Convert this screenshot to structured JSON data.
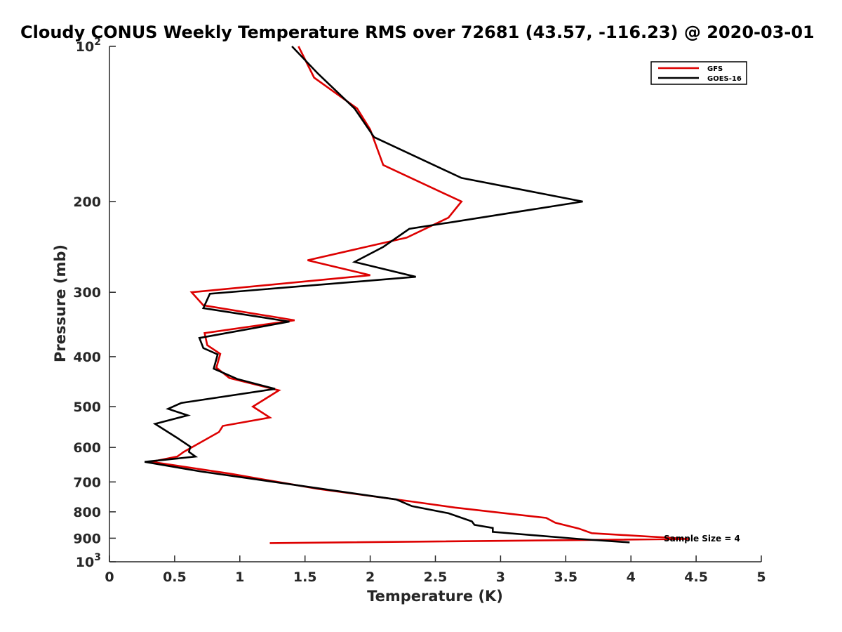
{
  "chart_data": {
    "type": "line",
    "title": "Cloudy CONUS Weekly Temperature RMS over 72681 (43.57, -116.23) @ 2020-03-01",
    "xlabel": "Temperature (K)",
    "ylabel": "Pressure (mb)",
    "xlim": [
      0,
      5
    ],
    "ylim": [
      100,
      1000
    ],
    "yscale": "log",
    "y_reversed": true,
    "grid": false,
    "legend_position": "top-right",
    "x_ticks": [
      0,
      0.5,
      1,
      1.5,
      2,
      2.5,
      3,
      3.5,
      4,
      4.5,
      5
    ],
    "x_tick_labels": [
      "0",
      "0.5",
      "1",
      "1.5",
      "2",
      "2.5",
      "3",
      "3.5",
      "4",
      "4.5",
      "5"
    ],
    "y_ticks": [
      {
        "value": 100,
        "base": "10",
        "exp": "2"
      },
      {
        "value": 200,
        "label": "200"
      },
      {
        "value": 300,
        "label": "300"
      },
      {
        "value": 400,
        "label": "400"
      },
      {
        "value": 500,
        "label": "500"
      },
      {
        "value": 600,
        "label": "600"
      },
      {
        "value": 700,
        "label": "700"
      },
      {
        "value": 800,
        "label": "800"
      },
      {
        "value": 900,
        "label": "900"
      },
      {
        "value": 1000,
        "base": "10",
        "exp": "3"
      }
    ],
    "annotation": "Sample Size = 4",
    "series": [
      {
        "name": "GFS",
        "color": "#dd0000",
        "points": [
          [
            1.45,
            100
          ],
          [
            1.57,
            115
          ],
          [
            1.9,
            132
          ],
          [
            2.0,
            145
          ],
          [
            2.1,
            170
          ],
          [
            2.7,
            200
          ],
          [
            2.6,
            215
          ],
          [
            2.28,
            235
          ],
          [
            1.52,
            260
          ],
          [
            2.0,
            278
          ],
          [
            0.63,
            300
          ],
          [
            0.72,
            318
          ],
          [
            1.42,
            340
          ],
          [
            0.73,
            360
          ],
          [
            0.75,
            380
          ],
          [
            0.85,
            395
          ],
          [
            0.82,
            420
          ],
          [
            0.92,
            440
          ],
          [
            1.3,
            465
          ],
          [
            1.1,
            500
          ],
          [
            1.23,
            525
          ],
          [
            0.87,
            545
          ],
          [
            0.84,
            560
          ],
          [
            0.57,
            612
          ],
          [
            0.52,
            625
          ],
          [
            0.32,
            640
          ],
          [
            0.93,
            675
          ],
          [
            1.6,
            722
          ],
          [
            2.35,
            766
          ],
          [
            2.65,
            785
          ],
          [
            3.35,
            822
          ],
          [
            3.42,
            840
          ],
          [
            3.6,
            862
          ],
          [
            3.7,
            880
          ],
          [
            4.45,
            903
          ],
          [
            1.23,
            920
          ]
        ]
      },
      {
        "name": "GOES-16",
        "color": "#000000",
        "points": [
          [
            1.4,
            100
          ],
          [
            1.6,
            113
          ],
          [
            1.88,
            132
          ],
          [
            2.03,
            150
          ],
          [
            2.7,
            180
          ],
          [
            3.63,
            200
          ],
          [
            2.3,
            226
          ],
          [
            2.1,
            245
          ],
          [
            1.88,
            262
          ],
          [
            2.35,
            280
          ],
          [
            0.77,
            302
          ],
          [
            0.72,
            322
          ],
          [
            1.38,
            342
          ],
          [
            0.69,
            368
          ],
          [
            0.72,
            385
          ],
          [
            0.83,
            396
          ],
          [
            0.8,
            422
          ],
          [
            0.98,
            442
          ],
          [
            1.27,
            462
          ],
          [
            0.55,
            492
          ],
          [
            0.45,
            505
          ],
          [
            0.6,
            520
          ],
          [
            0.35,
            540
          ],
          [
            0.52,
            575
          ],
          [
            0.62,
            598
          ],
          [
            0.61,
            612
          ],
          [
            0.66,
            625
          ],
          [
            0.27,
            640
          ],
          [
            0.7,
            668
          ],
          [
            1.6,
            720
          ],
          [
            2.2,
            757
          ],
          [
            2.32,
            780
          ],
          [
            2.6,
            805
          ],
          [
            2.78,
            835
          ],
          [
            2.8,
            848
          ],
          [
            2.94,
            860
          ],
          [
            2.94,
            875
          ],
          [
            3.6,
            903
          ],
          [
            3.99,
            917
          ]
        ]
      }
    ]
  }
}
